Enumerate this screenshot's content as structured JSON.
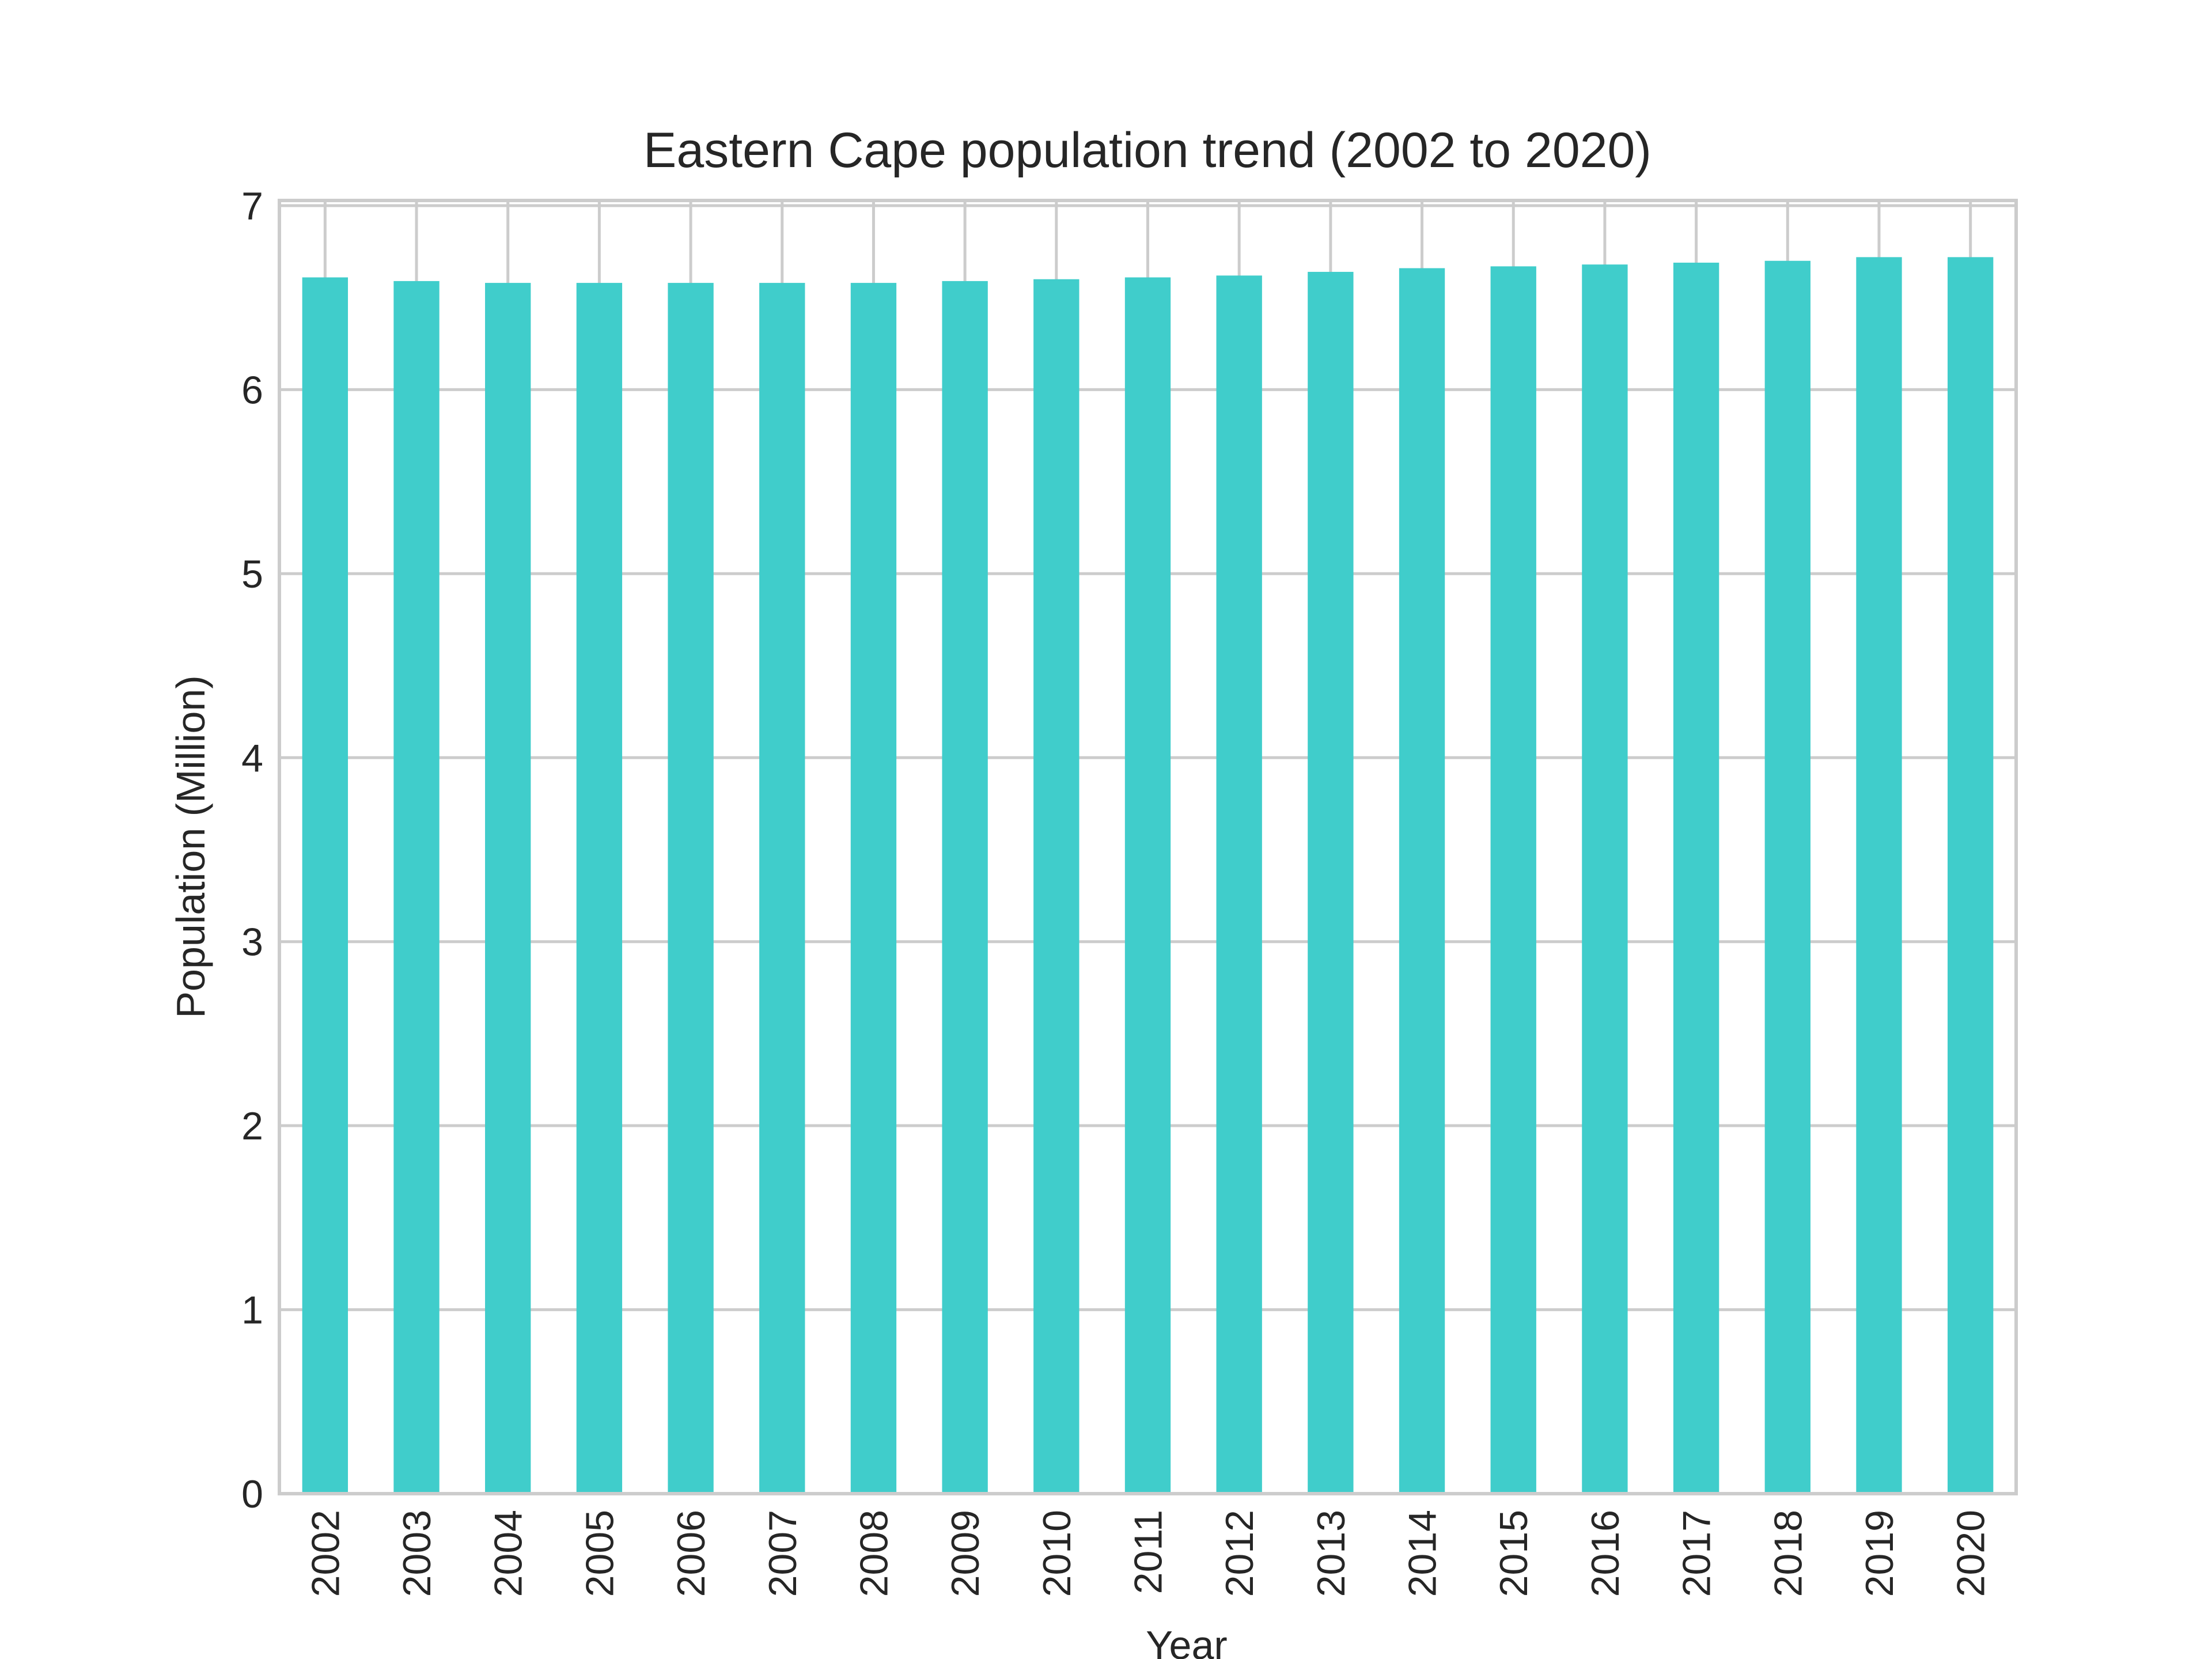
{
  "chart_data": {
    "type": "bar",
    "title": "Eastern Cape population trend (2002 to 2020)",
    "xlabel": "Year",
    "ylabel": "Population (Million)",
    "ylim": [
      0,
      7
    ],
    "yticks": [
      "0",
      "1",
      "2",
      "3",
      "4",
      "5",
      "6",
      "7"
    ],
    "grid": true,
    "bar_color": "#40cdcb",
    "grid_color": "#cccccc",
    "categories": [
      "2002",
      "2003",
      "2004",
      "2005",
      "2006",
      "2007",
      "2008",
      "2009",
      "2010",
      "2011",
      "2012",
      "2013",
      "2014",
      "2015",
      "2016",
      "2017",
      "2018",
      "2019",
      "2020"
    ],
    "values": [
      6.61,
      6.59,
      6.58,
      6.58,
      6.58,
      6.58,
      6.58,
      6.59,
      6.6,
      6.61,
      6.62,
      6.64,
      6.66,
      6.67,
      6.68,
      6.69,
      6.7,
      6.72,
      6.72
    ]
  }
}
